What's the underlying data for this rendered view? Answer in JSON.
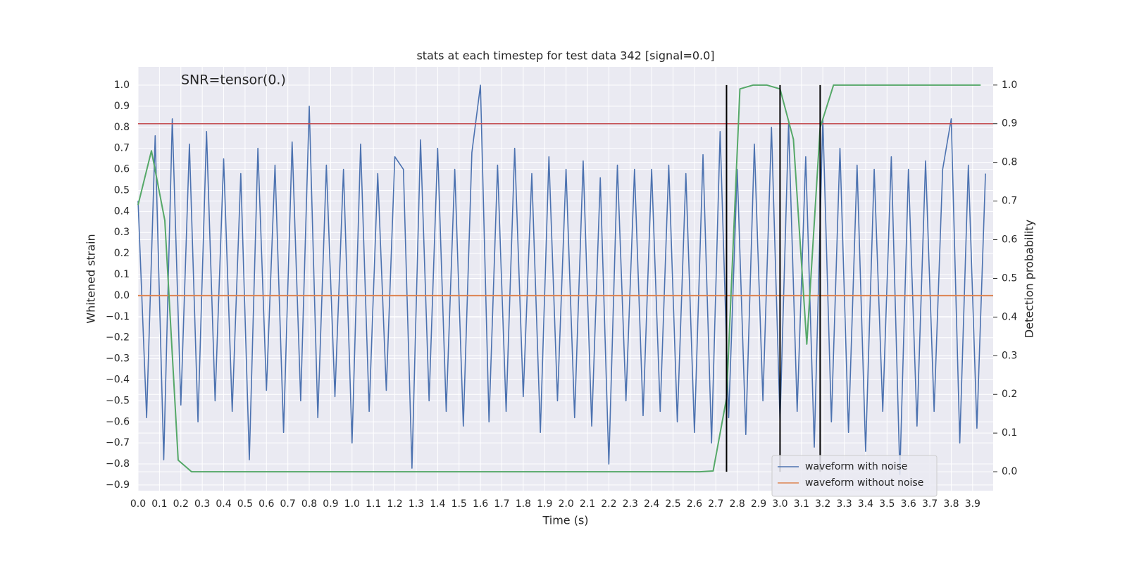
{
  "chart_data": {
    "type": "line",
    "title": "stats at each timestep for test data 342 [signal=0.0]",
    "annotation": "SNR=tensor(0.)",
    "xlabel": "Time (s)",
    "ylabel": "Whitened strain",
    "y2label": "Detection probability",
    "xlim": [
      0,
      3.996
    ],
    "ylim": [
      -0.927,
      1.087
    ],
    "y2lim": [
      -0.049,
      1.047
    ],
    "grid": true,
    "legend": "lower right",
    "xticks": [
      {
        "value": 0,
        "label": "0.0"
      },
      {
        "value": 0.1,
        "label": "0.1"
      },
      {
        "value": 0.2,
        "label": "0.2"
      },
      {
        "value": 0.3,
        "label": "0.3"
      },
      {
        "value": 0.4,
        "label": "0.4"
      },
      {
        "value": 0.5,
        "label": "0.5"
      },
      {
        "value": 0.6,
        "label": "0.6"
      },
      {
        "value": 0.7,
        "label": "0.7"
      },
      {
        "value": 0.8,
        "label": "0.8"
      },
      {
        "value": 0.9,
        "label": "0.9"
      },
      {
        "value": 1,
        "label": "1.0"
      },
      {
        "value": 1.1,
        "label": "1.1"
      },
      {
        "value": 1.2,
        "label": "1.2"
      },
      {
        "value": 1.3,
        "label": "1.3"
      },
      {
        "value": 1.4,
        "label": "1.4"
      },
      {
        "value": 1.5,
        "label": "1.5"
      },
      {
        "value": 1.6,
        "label": "1.6"
      },
      {
        "value": 1.7,
        "label": "1.7"
      },
      {
        "value": 1.8,
        "label": "1.8"
      },
      {
        "value": 1.9,
        "label": "1.9"
      },
      {
        "value": 2,
        "label": "2.0"
      },
      {
        "value": 2.1,
        "label": "2.1"
      },
      {
        "value": 2.2,
        "label": "2.2"
      },
      {
        "value": 2.3,
        "label": "2.3"
      },
      {
        "value": 2.4,
        "label": "2.4"
      },
      {
        "value": 2.5,
        "label": "2.5"
      },
      {
        "value": 2.6,
        "label": "2.6"
      },
      {
        "value": 2.7,
        "label": "2.7"
      },
      {
        "value": 2.8,
        "label": "2.8"
      },
      {
        "value": 2.9,
        "label": "2.9"
      },
      {
        "value": 3,
        "label": "3.0"
      },
      {
        "value": 3.1,
        "label": "3.1"
      },
      {
        "value": 3.2,
        "label": "3.2"
      },
      {
        "value": 3.3,
        "label": "3.3"
      },
      {
        "value": 3.4,
        "label": "3.4"
      },
      {
        "value": 3.5,
        "label": "3.5"
      },
      {
        "value": 3.6,
        "label": "3.6"
      },
      {
        "value": 3.7,
        "label": "3.7"
      },
      {
        "value": 3.8,
        "label": "3.8"
      },
      {
        "value": 3.9,
        "label": "3.9"
      }
    ],
    "yticks": [
      {
        "value": -0.9,
        "label": "−0.9"
      },
      {
        "value": -0.8,
        "label": "−0.8"
      },
      {
        "value": -0.7,
        "label": "−0.7"
      },
      {
        "value": -0.6,
        "label": "−0.6"
      },
      {
        "value": -0.5,
        "label": "−0.5"
      },
      {
        "value": -0.4,
        "label": "−0.4"
      },
      {
        "value": -0.3,
        "label": "−0.3"
      },
      {
        "value": -0.2,
        "label": "−0.2"
      },
      {
        "value": -0.1,
        "label": "−0.1"
      },
      {
        "value": 0,
        "label": "0.0"
      },
      {
        "value": 0.1,
        "label": "0.1"
      },
      {
        "value": 0.2,
        "label": "0.2"
      },
      {
        "value": 0.3,
        "label": "0.3"
      },
      {
        "value": 0.4,
        "label": "0.4"
      },
      {
        "value": 0.5,
        "label": "0.5"
      },
      {
        "value": 0.6,
        "label": "0.6"
      },
      {
        "value": 0.7,
        "label": "0.7"
      },
      {
        "value": 0.8,
        "label": "0.8"
      },
      {
        "value": 0.9,
        "label": "0.9"
      },
      {
        "value": 1,
        "label": "1.0"
      }
    ],
    "y2ticks": [
      {
        "value": 0,
        "label": "0.0"
      },
      {
        "value": 0.1,
        "label": "0.1"
      },
      {
        "value": 0.2,
        "label": "0.2"
      },
      {
        "value": 0.3,
        "label": "0.3"
      },
      {
        "value": 0.4,
        "label": "0.4"
      },
      {
        "value": 0.5,
        "label": "0.5"
      },
      {
        "value": 0.6,
        "label": "0.6"
      },
      {
        "value": 0.7,
        "label": "0.7"
      },
      {
        "value": 0.8,
        "label": "0.8"
      },
      {
        "value": 0.9,
        "label": "0.9"
      },
      {
        "value": 1,
        "label": "1.0"
      }
    ],
    "series": [
      {
        "name": "waveform with noise",
        "color": "#4c72b0",
        "x": [
          0,
          0.04,
          0.08,
          0.12,
          0.16,
          0.2,
          0.24,
          0.28,
          0.32,
          0.36,
          0.4,
          0.44,
          0.48,
          0.52,
          0.56,
          0.6,
          0.64,
          0.68,
          0.72,
          0.76,
          0.8,
          0.84,
          0.88,
          0.92,
          0.96,
          1,
          1.04,
          1.08,
          1.12,
          1.16,
          1.2,
          1.24,
          1.28,
          1.32,
          1.36,
          1.4,
          1.44,
          1.48,
          1.52,
          1.56,
          1.6,
          1.64,
          1.68,
          1.72,
          1.76,
          1.8,
          1.84,
          1.88,
          1.92,
          1.96,
          2,
          2.04,
          2.08,
          2.12,
          2.16,
          2.2,
          2.24,
          2.28,
          2.32,
          2.36,
          2.4,
          2.44,
          2.48,
          2.52,
          2.56,
          2.6,
          2.64,
          2.68,
          2.72,
          2.76,
          2.8,
          2.84,
          2.88,
          2.92,
          2.96,
          3,
          3.04,
          3.08,
          3.12,
          3.16,
          3.2,
          3.24,
          3.28,
          3.32,
          3.36,
          3.4,
          3.44,
          3.48,
          3.52,
          3.56,
          3.6,
          3.64,
          3.68,
          3.72,
          3.76,
          3.8,
          3.84,
          3.88,
          3.92,
          3.96
        ],
        "values": [
          0.45,
          -0.58,
          0.76,
          -0.78,
          0.84,
          -0.52,
          0.72,
          -0.6,
          0.78,
          -0.5,
          0.65,
          -0.55,
          0.58,
          -0.78,
          0.7,
          -0.45,
          0.62,
          -0.65,
          0.73,
          -0.5,
          0.9,
          -0.58,
          0.62,
          -0.48,
          0.6,
          -0.7,
          0.72,
          -0.55,
          0.58,
          -0.45,
          0.66,
          0.6,
          -0.82,
          0.74,
          -0.5,
          0.7,
          -0.55,
          0.6,
          -0.62,
          0.68,
          1.0,
          -0.6,
          0.62,
          -0.55,
          0.7,
          -0.48,
          0.58,
          -0.65,
          0.66,
          -0.5,
          0.6,
          -0.58,
          0.64,
          -0.62,
          0.56,
          -0.8,
          0.62,
          -0.5,
          0.6,
          -0.57,
          0.6,
          -0.55,
          0.62,
          -0.6,
          0.58,
          -0.65,
          0.67,
          -0.7,
          0.78,
          -0.58,
          0.6,
          -0.66,
          0.72,
          -0.5,
          0.8,
          -0.6,
          0.82,
          -0.55,
          0.66,
          -0.72,
          0.84,
          -0.6,
          0.7,
          -0.65,
          0.62,
          -0.74,
          0.6,
          -0.55,
          0.66,
          -0.85,
          0.6,
          -0.62,
          0.64,
          -0.55,
          0.6,
          0.84,
          -0.7,
          0.62,
          -0.63,
          0.58
        ]
      },
      {
        "name": "waveform without noise",
        "color": "#dd8452",
        "x": [
          0,
          3.996
        ],
        "values": [
          0,
          0
        ]
      },
      {
        "color": "#55a868",
        "axis": "y2",
        "x": [
          0,
          0.0625,
          0.125,
          0.1875,
          0.25,
          2.625,
          2.6875,
          2.75,
          2.8125,
          2.875,
          2.9375,
          3.0,
          3.0625,
          3.125,
          3.1875,
          3.25,
          3.9375
        ],
        "values": [
          0.69,
          0.83,
          0.65,
          0.03,
          0,
          0,
          0.002,
          0.19,
          0.99,
          1.0,
          1.0,
          0.99,
          0.86,
          0.33,
          0.89,
          1.0,
          1.0
        ]
      }
    ],
    "threshold": {
      "value": 0.9,
      "axis": "y2",
      "color": "#c44e52"
    },
    "vlines": {
      "x": [
        2.75,
        3.0,
        3.1875
      ],
      "ymin": 0,
      "ymax": 1,
      "axis": "y2",
      "color": "#000000"
    }
  }
}
